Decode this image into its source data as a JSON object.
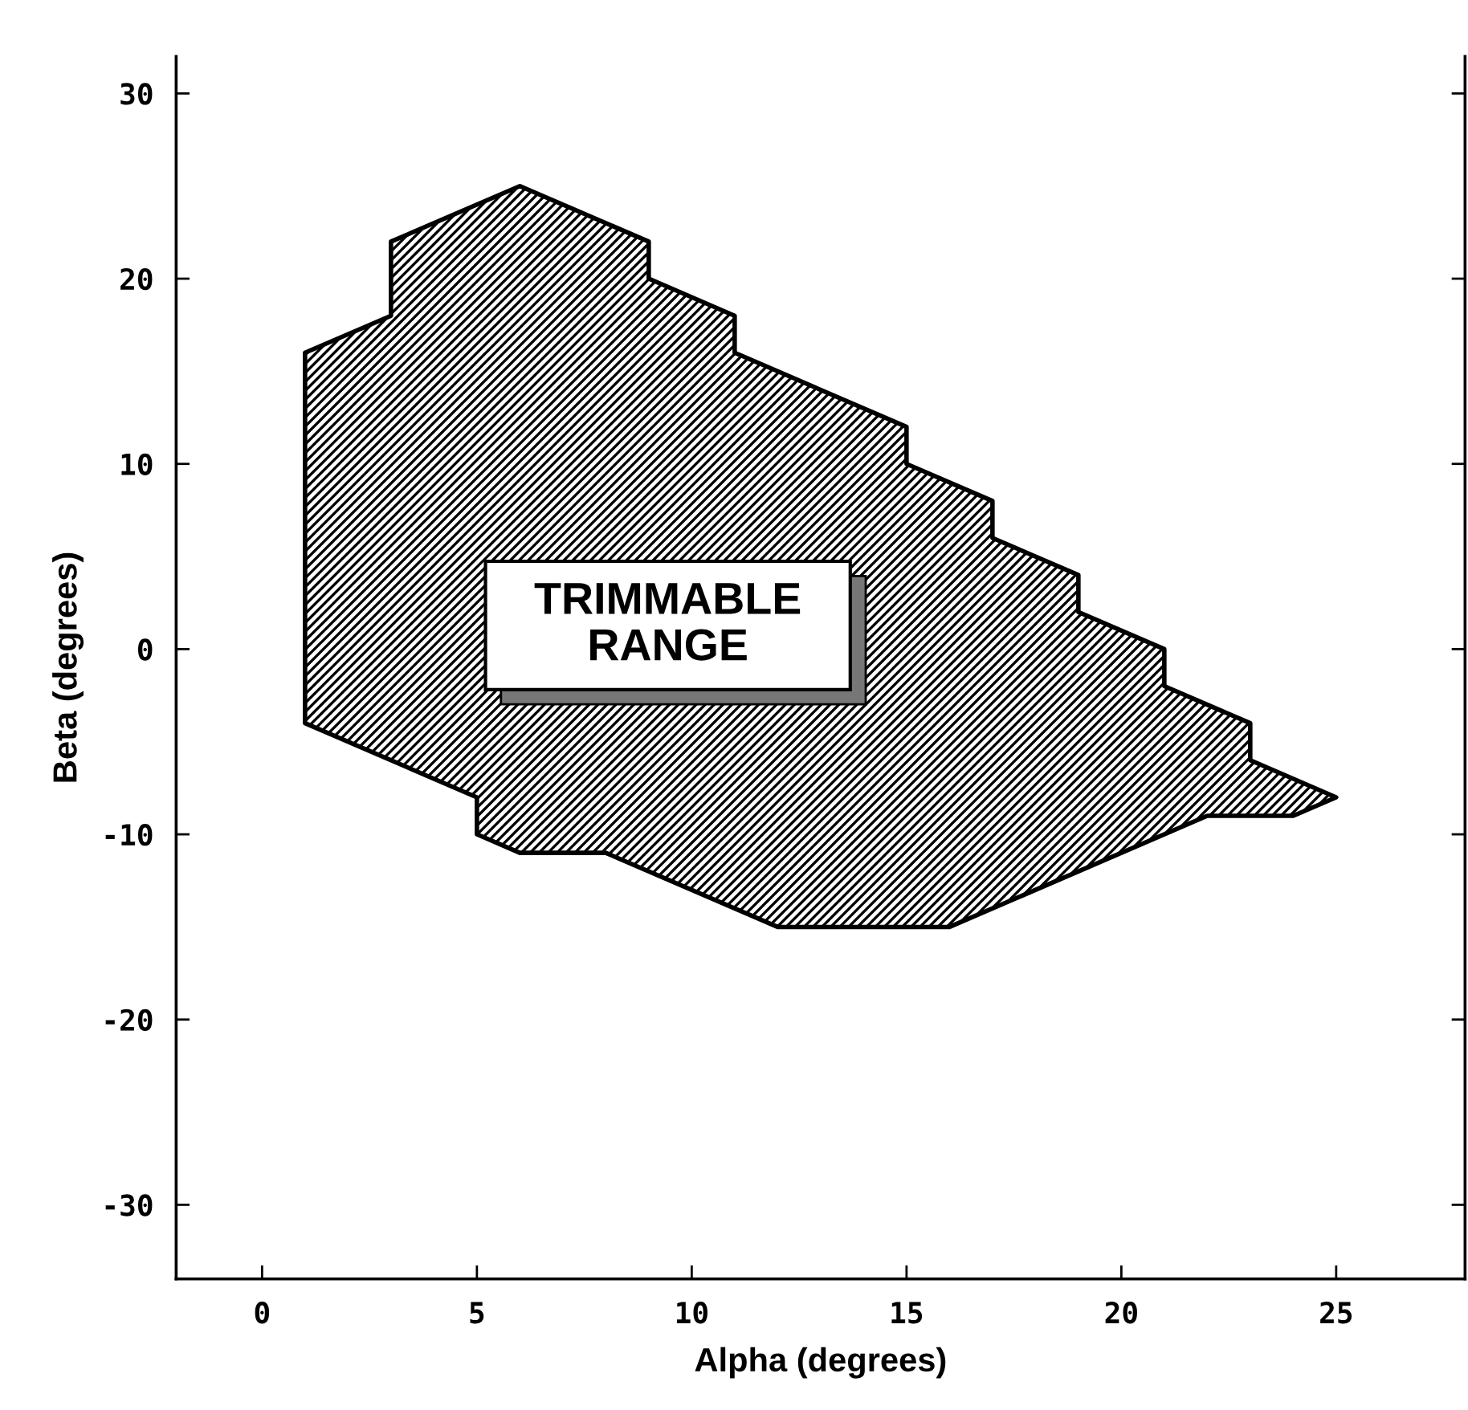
{
  "chart_data": {
    "type": "area",
    "xlabel": "Alpha (degrees)",
    "ylabel": "Beta (degrees)",
    "series": [
      {
        "color": "#000000",
        "x": [
          1,
          3,
          3,
          6,
          9,
          9,
          11,
          11,
          15,
          15,
          17,
          17,
          19,
          19,
          21,
          21,
          23,
          23,
          25,
          24,
          22,
          16,
          12,
          8,
          6,
          5,
          5,
          1
        ],
        "values": [
          16,
          18,
          22,
          25,
          22,
          20,
          18,
          16,
          12,
          10,
          8,
          6,
          4,
          2,
          0,
          -2,
          -4,
          -6,
          -8,
          -9,
          -9,
          -15,
          -15,
          -11,
          -11,
          -10,
          -8,
          -4
        ]
      }
    ],
    "annotations": [
      "TRIMMABLE\nRANGE"
    ],
    "xlim": [
      -2,
      28
    ],
    "xticks": [
      0,
      5,
      10,
      15,
      20,
      25
    ],
    "ylim": [
      -34,
      32
    ],
    "yticks": [
      -30,
      -20,
      -10,
      0,
      10,
      20,
      30
    ],
    "grid": false,
    "legend": false
  }
}
